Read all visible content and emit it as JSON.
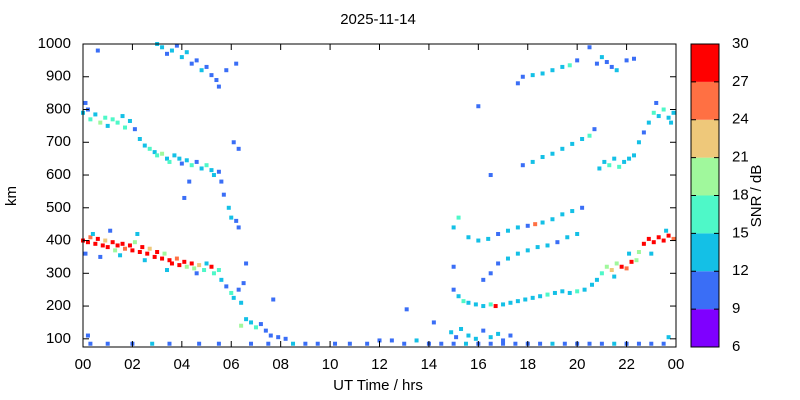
{
  "chart_data": {
    "type": "scatter",
    "title": "2025-11-14",
    "xlabel": "UT Time / hrs",
    "ylabel": "km",
    "colorbar_label": "SNR / dB",
    "xlim": [
      0,
      24
    ],
    "xticks": [
      {
        "value": 0,
        "label": "00"
      },
      {
        "value": 2,
        "label": "02"
      },
      {
        "value": 4,
        "label": "04"
      },
      {
        "value": 6,
        "label": "06"
      },
      {
        "value": 8,
        "label": "08"
      },
      10,
      12,
      14,
      16,
      18,
      20,
      22,
      {
        "value": 24,
        "label": "00"
      }
    ],
    "ylim": [
      75,
      1000
    ],
    "yticks": [
      100,
      200,
      300,
      400,
      500,
      600,
      700,
      800,
      900,
      1000
    ],
    "clim": [
      6,
      30
    ],
    "cticks": [
      6,
      9,
      12,
      15,
      18,
      21,
      24,
      27,
      30
    ],
    "colors": [
      "#7f00ff",
      "#3a6ef6",
      "#14c0e6",
      "#4ef8c8",
      "#a0f89c",
      "#eec87a",
      "#ff7043",
      "#ff0000"
    ],
    "points": [
      [
        0.0,
        400,
        27
      ],
      [
        0.2,
        395,
        28
      ],
      [
        0.3,
        410,
        24
      ],
      [
        0.5,
        390,
        27
      ],
      [
        0.6,
        405,
        29
      ],
      [
        0.8,
        385,
        28
      ],
      [
        0.9,
        400,
        22
      ],
      [
        1.0,
        380,
        27
      ],
      [
        1.2,
        395,
        28
      ],
      [
        1.3,
        370,
        20
      ],
      [
        1.4,
        385,
        29
      ],
      [
        1.6,
        390,
        27
      ],
      [
        1.7,
        375,
        25
      ],
      [
        1.9,
        385,
        28
      ],
      [
        2.0,
        370,
        29
      ],
      [
        2.1,
        395,
        18
      ],
      [
        2.3,
        365,
        27
      ],
      [
        2.4,
        380,
        28
      ],
      [
        2.6,
        360,
        27
      ],
      [
        2.7,
        375,
        22
      ],
      [
        2.9,
        350,
        28
      ],
      [
        3.0,
        365,
        27
      ],
      [
        3.2,
        345,
        28
      ],
      [
        3.3,
        360,
        19
      ],
      [
        3.5,
        340,
        27
      ],
      [
        3.6,
        330,
        28
      ],
      [
        3.8,
        345,
        24
      ],
      [
        3.9,
        325,
        27
      ],
      [
        4.1,
        335,
        28
      ],
      [
        4.2,
        320,
        20
      ],
      [
        4.4,
        330,
        27
      ],
      [
        4.5,
        315,
        18
      ],
      [
        4.7,
        325,
        22
      ],
      [
        4.9,
        310,
        17
      ],
      [
        5.0,
        330,
        14
      ],
      [
        5.2,
        320,
        27
      ],
      [
        5.3,
        300,
        16
      ],
      [
        5.5,
        310,
        15
      ],
      [
        5.6,
        280,
        12
      ],
      [
        5.8,
        260,
        10
      ],
      [
        6.0,
        240,
        16
      ],
      [
        6.1,
        225,
        13
      ],
      [
        6.3,
        250,
        11
      ],
      [
        6.4,
        210,
        14
      ],
      [
        6.5,
        270,
        9
      ],
      [
        6.6,
        330,
        10
      ],
      [
        0.1,
        360,
        11
      ],
      [
        0.7,
        350,
        10
      ],
      [
        1.5,
        355,
        13
      ],
      [
        2.5,
        340,
        12
      ],
      [
        3.4,
        310,
        14
      ],
      [
        4.6,
        300,
        11
      ],
      [
        2.2,
        420,
        14
      ],
      [
        0.4,
        420,
        12
      ],
      [
        1.1,
        430,
        10
      ],
      [
        0.0,
        790,
        14
      ],
      [
        0.2,
        800,
        11
      ],
      [
        0.3,
        770,
        16
      ],
      [
        0.5,
        785,
        14
      ],
      [
        0.7,
        760,
        18
      ],
      [
        0.9,
        775,
        15
      ],
      [
        1.0,
        750,
        12
      ],
      [
        1.2,
        770,
        17
      ],
      [
        1.4,
        760,
        15
      ],
      [
        1.6,
        780,
        13
      ],
      [
        1.7,
        745,
        16
      ],
      [
        1.9,
        765,
        14
      ],
      [
        2.1,
        740,
        11
      ],
      [
        2.3,
        710,
        12
      ],
      [
        2.5,
        690,
        14
      ],
      [
        2.7,
        680,
        16
      ],
      [
        2.9,
        670,
        13
      ],
      [
        3.0,
        660,
        15
      ],
      [
        3.2,
        665,
        18
      ],
      [
        3.4,
        650,
        14
      ],
      [
        3.5,
        640,
        17
      ],
      [
        3.7,
        660,
        12
      ],
      [
        3.9,
        650,
        14
      ],
      [
        4.0,
        635,
        10
      ],
      [
        4.2,
        645,
        13
      ],
      [
        4.4,
        630,
        15
      ],
      [
        4.6,
        640,
        11
      ],
      [
        4.8,
        620,
        14
      ],
      [
        5.0,
        630,
        16
      ],
      [
        5.2,
        615,
        12
      ],
      [
        5.3,
        600,
        14
      ],
      [
        5.5,
        610,
        11
      ],
      [
        5.6,
        580,
        10
      ],
      [
        5.7,
        540,
        11
      ],
      [
        5.9,
        500,
        12
      ],
      [
        6.0,
        470,
        14
      ],
      [
        6.2,
        460,
        11
      ],
      [
        6.3,
        440,
        10
      ],
      [
        6.1,
        700,
        10
      ],
      [
        6.3,
        680,
        11
      ],
      [
        0.1,
        820,
        10
      ],
      [
        4.3,
        580,
        10
      ],
      [
        4.1,
        530,
        9
      ],
      [
        3.0,
        1000,
        12
      ],
      [
        3.2,
        990,
        14
      ],
      [
        3.4,
        970,
        11
      ],
      [
        3.6,
        980,
        13
      ],
      [
        3.8,
        995,
        10
      ],
      [
        4.0,
        960,
        12
      ],
      [
        4.2,
        975,
        14
      ],
      [
        4.4,
        940,
        11
      ],
      [
        4.6,
        950,
        10
      ],
      [
        4.8,
        920,
        12
      ],
      [
        5.0,
        930,
        11
      ],
      [
        5.2,
        905,
        10
      ],
      [
        5.4,
        890,
        11
      ],
      [
        5.5,
        870,
        10
      ],
      [
        5.8,
        920,
        9
      ],
      [
        6.2,
        940,
        10
      ],
      [
        0.6,
        980,
        10
      ],
      [
        6.4,
        140,
        20
      ],
      [
        6.6,
        160,
        14
      ],
      [
        6.8,
        150,
        12
      ],
      [
        7.0,
        135,
        15
      ],
      [
        7.2,
        145,
        11
      ],
      [
        7.4,
        125,
        10
      ],
      [
        7.6,
        110,
        9
      ],
      [
        7.7,
        220,
        10
      ],
      [
        7.9,
        105,
        10
      ],
      [
        8.2,
        100,
        11
      ],
      [
        0.3,
        85,
        10
      ],
      [
        1.0,
        85,
        11
      ],
      [
        2.0,
        85,
        10
      ],
      [
        2.8,
        85,
        12
      ],
      [
        3.5,
        85,
        10
      ],
      [
        4.7,
        85,
        11
      ],
      [
        5.5,
        85,
        10
      ],
      [
        6.8,
        85,
        11
      ],
      [
        7.5,
        85,
        10
      ],
      [
        8.5,
        85,
        12
      ],
      [
        9.0,
        85,
        10
      ],
      [
        9.5,
        85,
        11
      ],
      [
        10.2,
        85,
        10
      ],
      [
        10.8,
        85,
        11
      ],
      [
        11.5,
        85,
        10
      ],
      [
        12.0,
        95,
        11
      ],
      [
        12.5,
        95,
        10
      ],
      [
        13.0,
        85,
        11
      ],
      [
        13.5,
        95,
        12
      ],
      [
        14.0,
        85,
        10
      ],
      [
        14.5,
        85,
        11
      ],
      [
        15.0,
        85,
        10
      ],
      [
        15.5,
        85,
        12
      ],
      [
        16.0,
        85,
        11
      ],
      [
        16.5,
        85,
        10
      ],
      [
        17.0,
        85,
        11
      ],
      [
        17.5,
        85,
        10
      ],
      [
        18.0,
        85,
        11
      ],
      [
        18.5,
        85,
        10
      ],
      [
        19.0,
        85,
        12
      ],
      [
        19.5,
        85,
        10
      ],
      [
        20.0,
        85,
        11
      ],
      [
        20.5,
        85,
        10
      ],
      [
        21.0,
        85,
        11
      ],
      [
        21.5,
        85,
        12
      ],
      [
        22.0,
        85,
        10
      ],
      [
        22.5,
        85,
        11
      ],
      [
        23.0,
        85,
        10
      ],
      [
        23.5,
        85,
        11
      ],
      [
        0.2,
        110,
        10
      ],
      [
        23.7,
        105,
        13
      ],
      [
        14.9,
        120,
        12
      ],
      [
        15.1,
        105,
        11
      ],
      [
        15.3,
        130,
        13
      ],
      [
        15.6,
        110,
        12
      ],
      [
        15.9,
        100,
        14
      ],
      [
        16.2,
        125,
        11
      ],
      [
        16.5,
        105,
        13
      ],
      [
        16.8,
        115,
        12
      ],
      [
        17.0,
        95,
        11
      ],
      [
        17.3,
        110,
        10
      ],
      [
        14.2,
        150,
        10
      ],
      [
        13.1,
        190,
        10
      ],
      [
        15.0,
        250,
        11
      ],
      [
        15.2,
        230,
        13
      ],
      [
        15.4,
        215,
        15
      ],
      [
        15.6,
        210,
        12
      ],
      [
        15.9,
        205,
        14
      ],
      [
        16.2,
        200,
        13
      ],
      [
        16.5,
        205,
        16
      ],
      [
        16.7,
        200,
        27
      ],
      [
        17.0,
        205,
        13
      ],
      [
        17.3,
        210,
        14
      ],
      [
        17.6,
        215,
        12
      ],
      [
        17.9,
        220,
        13
      ],
      [
        18.2,
        225,
        14
      ],
      [
        18.5,
        230,
        12
      ],
      [
        18.8,
        235,
        15
      ],
      [
        19.1,
        240,
        13
      ],
      [
        19.4,
        245,
        14
      ],
      [
        19.7,
        240,
        12
      ],
      [
        20.0,
        245,
        15
      ],
      [
        20.3,
        250,
        13
      ],
      [
        20.6,
        265,
        12
      ],
      [
        20.8,
        280,
        14
      ],
      [
        21.0,
        300,
        16
      ],
      [
        21.2,
        320,
        18
      ],
      [
        21.4,
        310,
        22
      ],
      [
        21.6,
        330,
        19
      ],
      [
        21.8,
        320,
        27
      ],
      [
        22.0,
        315,
        24
      ],
      [
        22.2,
        335,
        27
      ],
      [
        22.4,
        340,
        20
      ],
      [
        22.5,
        365,
        18
      ],
      [
        22.7,
        390,
        27
      ],
      [
        22.9,
        405,
        28
      ],
      [
        23.1,
        395,
        27
      ],
      [
        23.3,
        410,
        29
      ],
      [
        23.5,
        400,
        27
      ],
      [
        23.7,
        415,
        28
      ],
      [
        23.9,
        405,
        24
      ],
      [
        21.5,
        290,
        14
      ],
      [
        22.1,
        360,
        13
      ],
      [
        23.0,
        360,
        12
      ],
      [
        23.6,
        430,
        14
      ],
      [
        15.0,
        320,
        10
      ],
      [
        15.2,
        470,
        16
      ],
      [
        15.0,
        440,
        13
      ],
      [
        15.6,
        410,
        13
      ],
      [
        16.0,
        400,
        12
      ],
      [
        16.4,
        405,
        14
      ],
      [
        16.8,
        420,
        11
      ],
      [
        17.2,
        430,
        12
      ],
      [
        17.6,
        440,
        13
      ],
      [
        18.0,
        445,
        11
      ],
      [
        18.3,
        450,
        24
      ],
      [
        18.6,
        455,
        12
      ],
      [
        19.0,
        465,
        14
      ],
      [
        19.4,
        480,
        13
      ],
      [
        19.8,
        490,
        12
      ],
      [
        20.2,
        500,
        11
      ],
      [
        16.8,
        330,
        11
      ],
      [
        17.2,
        345,
        12
      ],
      [
        17.6,
        360,
        13
      ],
      [
        18.0,
        370,
        14
      ],
      [
        18.4,
        380,
        12
      ],
      [
        18.8,
        385,
        13
      ],
      [
        19.2,
        395,
        11
      ],
      [
        19.6,
        410,
        12
      ],
      [
        20.0,
        420,
        13
      ],
      [
        16.2,
        280,
        10
      ],
      [
        16.5,
        300,
        11
      ],
      [
        17.8,
        630,
        11
      ],
      [
        18.2,
        640,
        12
      ],
      [
        18.6,
        655,
        13
      ],
      [
        19.0,
        665,
        12
      ],
      [
        19.4,
        680,
        14
      ],
      [
        19.8,
        695,
        13
      ],
      [
        20.2,
        710,
        12
      ],
      [
        20.5,
        720,
        15
      ],
      [
        20.7,
        740,
        11
      ],
      [
        16.5,
        600,
        10
      ],
      [
        16.0,
        810,
        10
      ],
      [
        17.8,
        900,
        11
      ],
      [
        18.2,
        905,
        12
      ],
      [
        18.6,
        910,
        13
      ],
      [
        19.0,
        920,
        12
      ],
      [
        19.4,
        930,
        14
      ],
      [
        19.7,
        935,
        16
      ],
      [
        20.0,
        950,
        10
      ],
      [
        17.6,
        880,
        10
      ],
      [
        20.5,
        990,
        10
      ],
      [
        20.9,
        620,
        12
      ],
      [
        21.1,
        640,
        14
      ],
      [
        21.3,
        630,
        15
      ],
      [
        21.5,
        650,
        13
      ],
      [
        21.7,
        625,
        16
      ],
      [
        21.9,
        640,
        12
      ],
      [
        22.1,
        650,
        14
      ],
      [
        22.3,
        660,
        12
      ],
      [
        22.5,
        700,
        13
      ],
      [
        22.7,
        730,
        11
      ],
      [
        22.9,
        760,
        14
      ],
      [
        23.1,
        790,
        16
      ],
      [
        23.3,
        780,
        13
      ],
      [
        23.5,
        800,
        15
      ],
      [
        23.7,
        775,
        14
      ],
      [
        23.9,
        790,
        12
      ],
      [
        23.2,
        820,
        11
      ],
      [
        23.8,
        760,
        13
      ],
      [
        20.8,
        940,
        11
      ],
      [
        21.0,
        960,
        12
      ],
      [
        21.2,
        945,
        10
      ],
      [
        21.4,
        930,
        11
      ],
      [
        21.6,
        920,
        12
      ],
      [
        22.0,
        950,
        10
      ],
      [
        22.3,
        955,
        11
      ]
    ]
  }
}
